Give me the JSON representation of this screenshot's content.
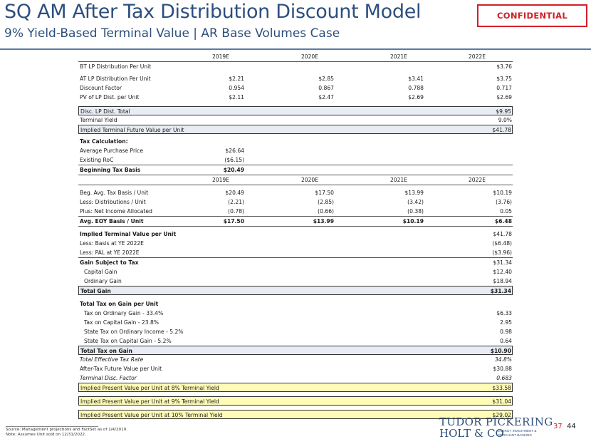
{
  "header": {
    "title": "SQ AM After Tax Distribution Discount Model",
    "subtitle": "9% Yield-Based Terminal Value | AR Base Volumes Case",
    "confidential": "CONFIDENTIAL"
  },
  "years": [
    "2019E",
    "2020E",
    "2021E",
    "2022E"
  ],
  "distribution": [
    {
      "label": "BT LP Distribution Per Unit",
      "v": [
        "",
        "",
        "",
        "$3.76"
      ]
    },
    {
      "label": "AT LP Distribution Per Unit",
      "v": [
        "$2.21",
        "$2.85",
        "$3.41",
        "$3.75"
      ]
    },
    {
      "label": "Discount Factor",
      "v": [
        "0.954",
        "0.867",
        "0.788",
        "0.717"
      ]
    },
    {
      "label": "PV of LP Dist. per Unit",
      "v": [
        "$2.11",
        "$2.47",
        "$2.69",
        "$2.69"
      ]
    }
  ],
  "terminal": [
    {
      "label": "Disc. LP Dist. Total",
      "value": "$9.95"
    },
    {
      "label": "Terminal Yield",
      "value": "9.0%"
    },
    {
      "label": "Implied Terminal Future Value per Unit",
      "value": "$41.78"
    }
  ],
  "tax_calc": {
    "heading": "Tax Calculation:",
    "rows": [
      {
        "label": "Average Purchase Price",
        "value": "$26.64"
      },
      {
        "label": "Existing RoC",
        "value": "($6.15)"
      },
      {
        "label": "Beginning Tax Basis",
        "value": "$20.49"
      }
    ]
  },
  "basis": [
    {
      "label": "Beg. Avg. Tax Basis / Unit",
      "v": [
        "$20.49",
        "$17.50",
        "$13.99",
        "$10.19"
      ]
    },
    {
      "label": "Less: Distributions / Unit",
      "v": [
        "(2.21)",
        "(2.85)",
        "(3.42)",
        "(3.76)"
      ]
    },
    {
      "label": "Plus: Net Income Allocated",
      "v": [
        "(0.78)",
        "(0.66)",
        "(0.38)",
        "0.05"
      ]
    },
    {
      "label": "Avg. EOY Basis / Unit",
      "v": [
        "$17.50",
        "$13.99",
        "$10.19",
        "$6.48"
      ]
    }
  ],
  "gain": [
    {
      "label": "Implied Terminal Value per Unit",
      "value": "$41.78"
    },
    {
      "label": "Less: Basis at YE 2022E",
      "value": "($6.48)"
    },
    {
      "label": "Less: PAL at YE 2022E",
      "value": "($3.96)"
    },
    {
      "label": "Gain Subject to Tax",
      "value": "$31.34"
    },
    {
      "label": "Capital Gain",
      "value": "$12.40"
    },
    {
      "label": "Ordinary Gain",
      "value": "$18.94"
    },
    {
      "label": "Total Gain",
      "value": "$31.34"
    }
  ],
  "tax": [
    {
      "label": "Total Tax on Gain per Unit",
      "value": ""
    },
    {
      "label": "Tax on Ordinary Gain - 33.4%",
      "value": "$6.33"
    },
    {
      "label": "Tax on Capital Gain - 23.8%",
      "value": "2.95"
    },
    {
      "label": "State Tax on Ordinary Income - 5.2%",
      "value": "0.98"
    },
    {
      "label": "State Tax on Capital Gain - 5.2%",
      "value": "0.64"
    },
    {
      "label": "Total Tax on Gain",
      "value": "$10.90"
    },
    {
      "label": "Total Effective Tax Rate",
      "value": "34.8%"
    },
    {
      "label": "After-Tax Future Value per Unit",
      "value": "$30.88"
    },
    {
      "label": "Terminal Disc. Factor",
      "value": "0.683"
    }
  ],
  "implied": [
    {
      "label": "Implied Present Value per Unit at 8% Terminal Yield",
      "value": "$33.58"
    },
    {
      "label": "Implied Present Value per Unit at 9% Terminal Yield",
      "value": "$31.04"
    },
    {
      "label": "Implied Present Value per Unit at 10% Terminal Yield",
      "value": "$29.02"
    }
  ],
  "footnote": {
    "line1": "Source: Management projections and FactSet as of 1/4/2019.",
    "line2": "Note: Assumes Unit sold on 12/31/2022."
  },
  "logo": {
    "line1": "TUDOR PICKERING",
    "line2": "HOLT & CO",
    "sub1": "ENERGY INVESTMENT &",
    "sub2": "MERCHANT BANKING"
  },
  "page": {
    "num1": "37",
    "num2": "44"
  }
}
